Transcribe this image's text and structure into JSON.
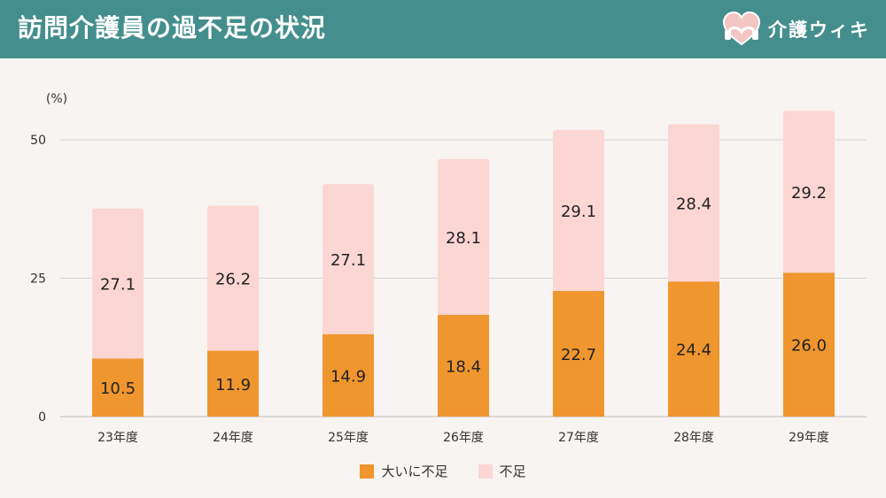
{
  "header": {
    "title": "訪問介護員の過不足の状況",
    "brand": "介護ウィキ"
  },
  "colors": {
    "header_bg": "#448f8d",
    "background": "#f7f4f1",
    "severe": "#f0962f",
    "shortage": "#fcd6d3"
  },
  "chart_data": {
    "type": "bar",
    "stacked": true,
    "title": "訪問介護員の過不足の状況",
    "unit_label": "(%)",
    "categories": [
      "23年度",
      "24年度",
      "25年度",
      "26年度",
      "27年度",
      "28年度",
      "29年度"
    ],
    "series": [
      {
        "name": "大いに不足",
        "color": "#f0962f",
        "values": [
          10.5,
          11.9,
          14.9,
          18.4,
          22.7,
          24.4,
          26.0
        ]
      },
      {
        "name": "不足",
        "color": "#fcd6d3",
        "values": [
          27.1,
          26.2,
          27.1,
          28.1,
          29.1,
          28.4,
          29.2
        ]
      }
    ],
    "yticks": [
      "0",
      "25",
      "50"
    ],
    "ylim": [
      0,
      55
    ],
    "grid": true,
    "legend_position": "bottom-center"
  }
}
